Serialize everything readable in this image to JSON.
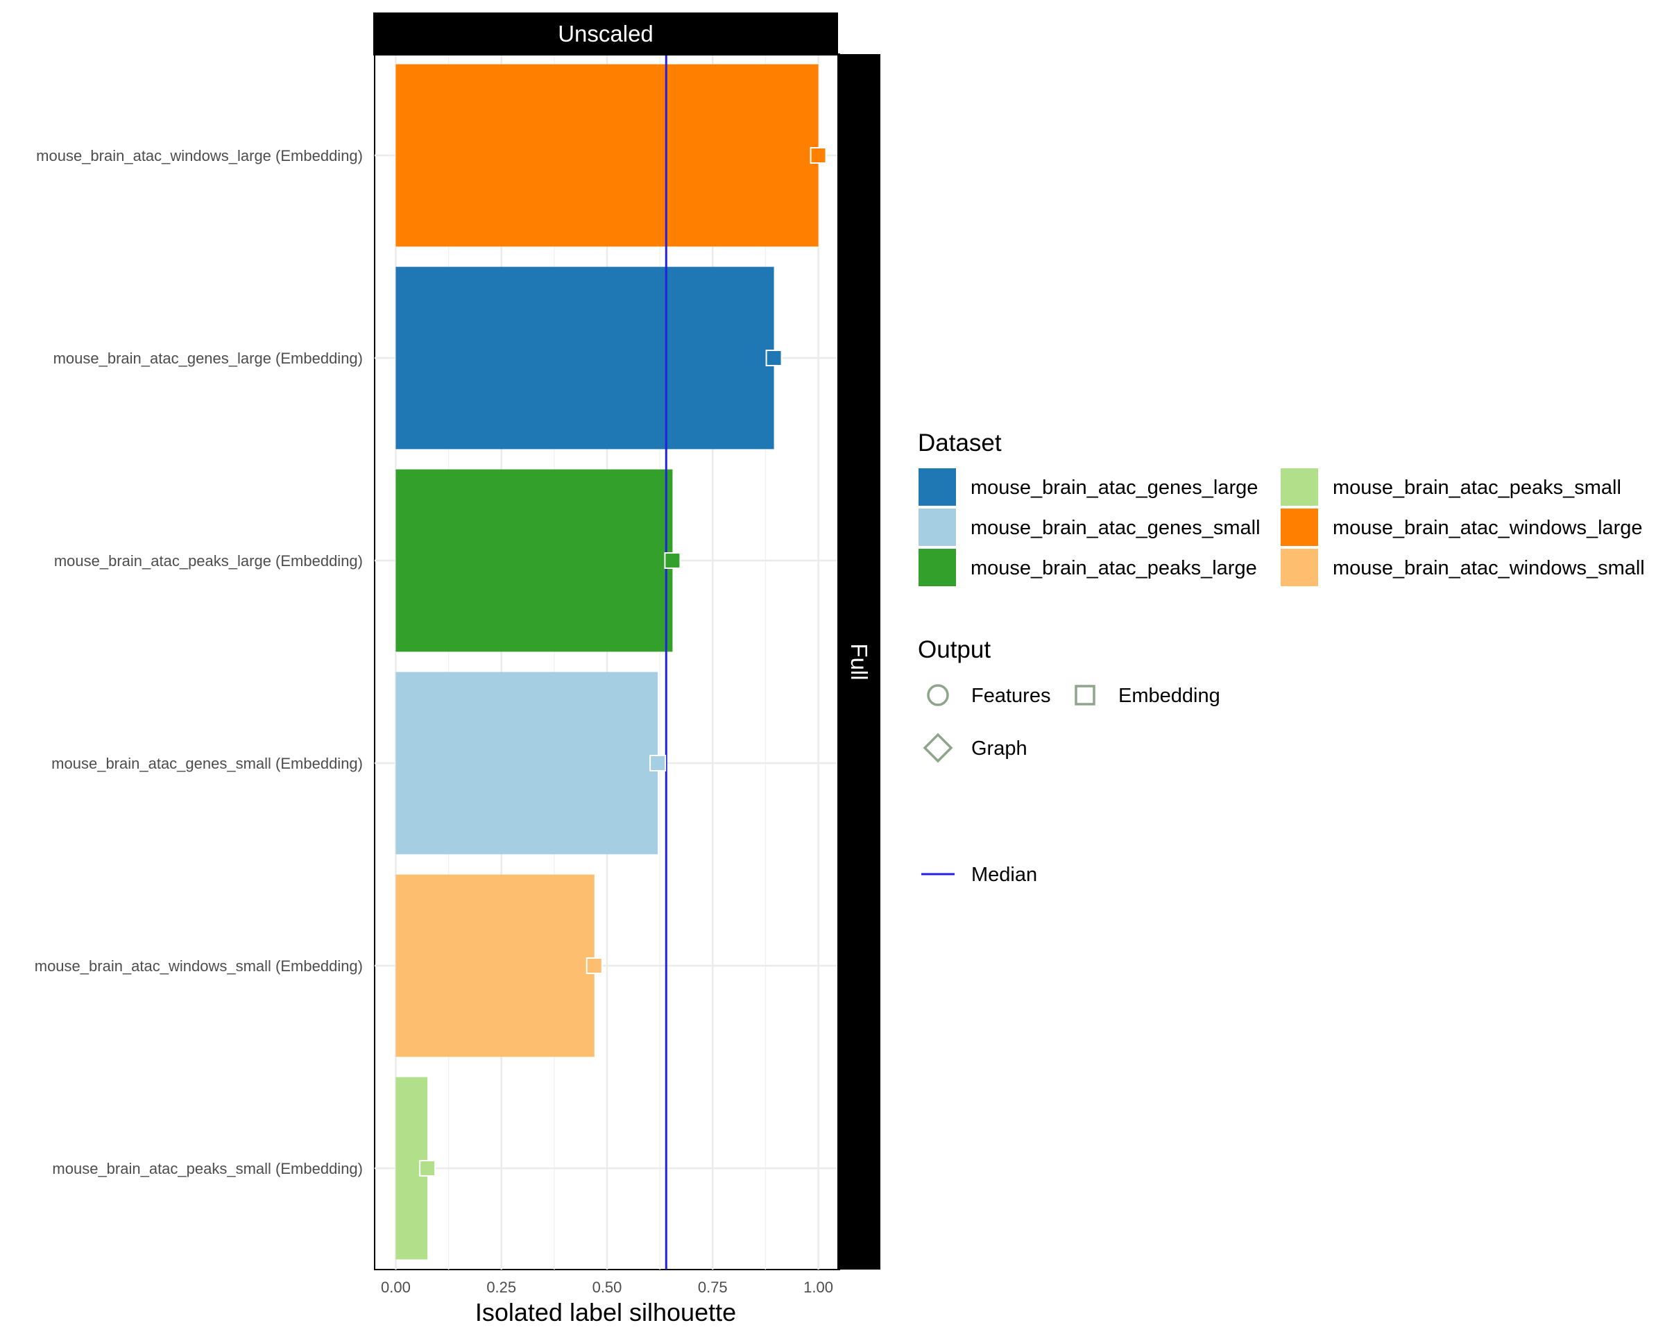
{
  "chart_data": {
    "type": "bar",
    "facet_top": "Unscaled",
    "facet_right": "Full",
    "xlabel": "Isolated label silhouette",
    "xlim": [
      -0.05,
      1.05
    ],
    "x_ticks": [
      "0.00",
      "0.25",
      "0.50",
      "0.75",
      "1.00"
    ],
    "grid": true,
    "median": 0.64,
    "median_label": "Median",
    "median_color": "#2222dd",
    "categories": [
      "mouse_brain_atac_windows_large (Embedding)",
      "mouse_brain_atac_genes_large (Embedding)",
      "mouse_brain_atac_peaks_large (Embedding)",
      "mouse_brain_atac_genes_small (Embedding)",
      "mouse_brain_atac_windows_small (Embedding)",
      "mouse_brain_atac_peaks_small (Embedding)"
    ],
    "values": [
      1.0,
      0.895,
      0.655,
      0.62,
      0.47,
      0.075
    ],
    "bar_colors": [
      "#ff7f00",
      "#1f78b4",
      "#33a02c",
      "#a6cee3",
      "#fdbf6f",
      "#b2df8a"
    ],
    "output_type": [
      "Embedding",
      "Embedding",
      "Embedding",
      "Embedding",
      "Embedding",
      "Embedding"
    ],
    "legend": {
      "dataset_title": "Dataset",
      "datasets": [
        {
          "name": "mouse_brain_atac_genes_large",
          "color": "#1f78b4"
        },
        {
          "name": "mouse_brain_atac_genes_small",
          "color": "#a6cee3"
        },
        {
          "name": "mouse_brain_atac_peaks_large",
          "color": "#33a02c"
        },
        {
          "name": "mouse_brain_atac_peaks_small",
          "color": "#b2df8a"
        },
        {
          "name": "mouse_brain_atac_windows_large",
          "color": "#ff7f00"
        },
        {
          "name": "mouse_brain_atac_windows_small",
          "color": "#fdbf6f"
        }
      ],
      "output_title": "Output",
      "outputs": [
        {
          "name": "Features",
          "shape": "circle"
        },
        {
          "name": "Embedding",
          "shape": "square"
        },
        {
          "name": "Graph",
          "shape": "diamond"
        }
      ],
      "shape_color": "#8fa58b",
      "placement": "right"
    }
  }
}
